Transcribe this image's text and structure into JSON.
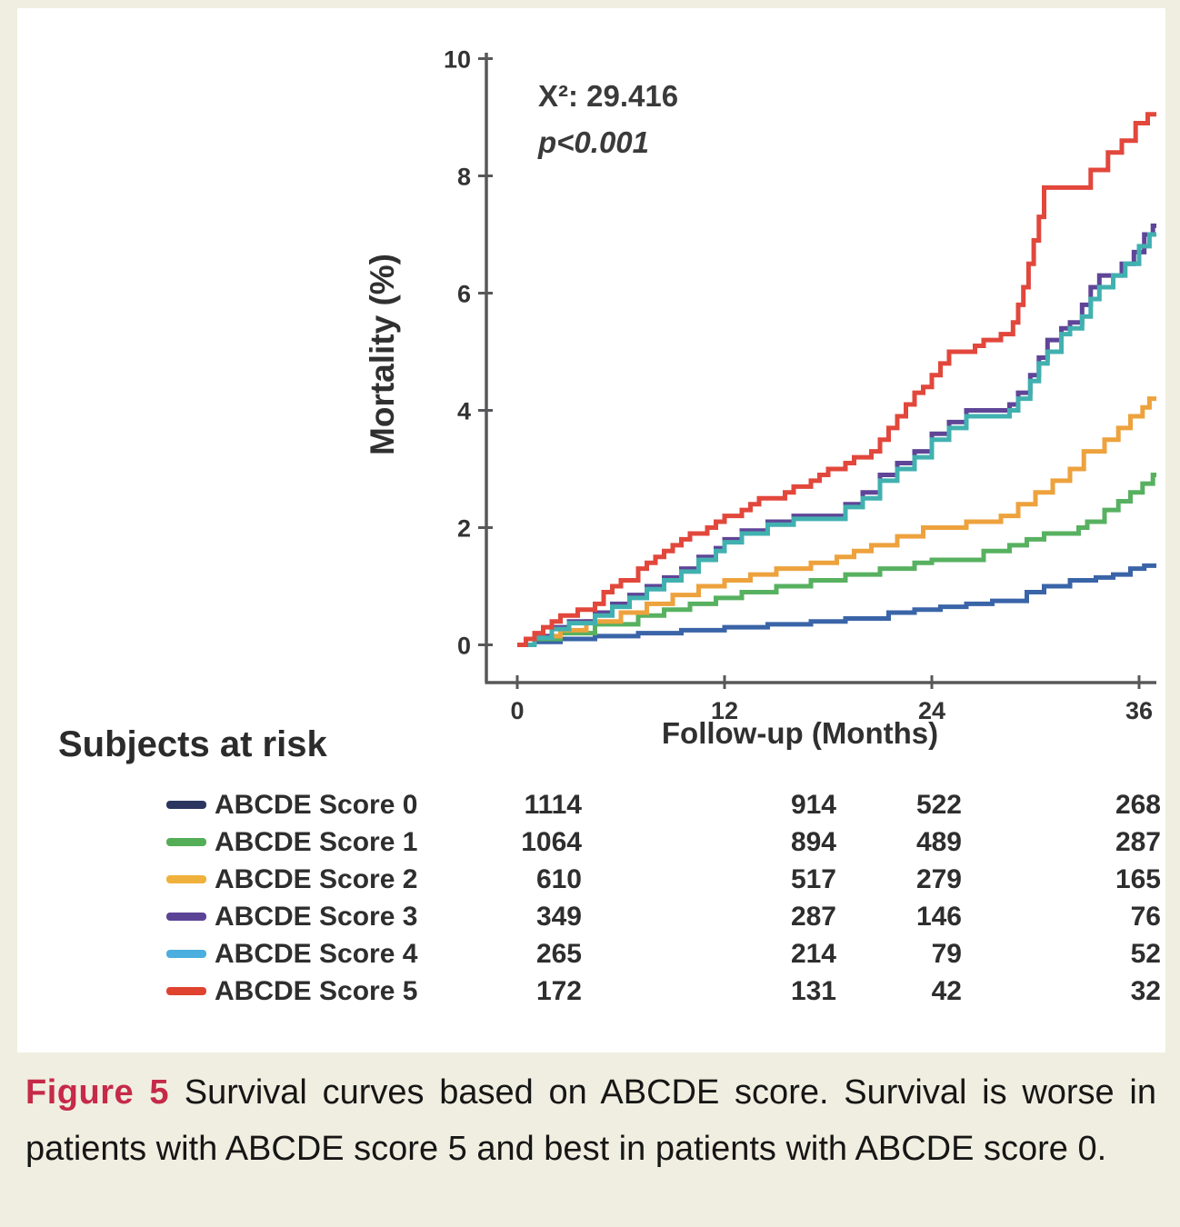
{
  "figure": {
    "caption_label": "Figure 5",
    "caption_text": "Survival curves based on ABCDE score. Survival is worse in patients with ABCDE score 5 and best in patients with ABCDE score 0.",
    "caption_label_color": "#c62a49",
    "background_color": "#f0eee0",
    "panel_color": "#ffffff"
  },
  "chart_data": {
    "type": "line",
    "subtype": "step-mortality-curves",
    "title": "",
    "xlabel": "Follow-up (Months)",
    "ylabel": "Mortality (%)",
    "xlim": [
      0,
      37
    ],
    "ylim": [
      0,
      10
    ],
    "x_ticks": [
      0,
      12,
      24,
      36
    ],
    "y_ticks": [
      0,
      2,
      4,
      6,
      8,
      10
    ],
    "grid": false,
    "legend_position": "bottom-risk-table",
    "annotation": {
      "chi_square": "X²: 29.416",
      "p_value": "p<0.001"
    },
    "axis_color": "#58585a",
    "series": [
      {
        "name": "ABCDE Score 0",
        "line_color": "#3a64a8",
        "swatch_color": "#2a3560",
        "points": [
          [
            0,
            0
          ],
          [
            1,
            0.05
          ],
          [
            2.5,
            0.1
          ],
          [
            4.5,
            0.15
          ],
          [
            7,
            0.2
          ],
          [
            9.5,
            0.25
          ],
          [
            12,
            0.3
          ],
          [
            14.5,
            0.35
          ],
          [
            17,
            0.4
          ],
          [
            19,
            0.45
          ],
          [
            21.5,
            0.55
          ],
          [
            23,
            0.6
          ],
          [
            24.5,
            0.65
          ],
          [
            26,
            0.7
          ],
          [
            27.5,
            0.75
          ],
          [
            29.5,
            0.9
          ],
          [
            30.5,
            1.0
          ],
          [
            32,
            1.1
          ],
          [
            33.5,
            1.15
          ],
          [
            34.5,
            1.2
          ],
          [
            35.5,
            1.3
          ],
          [
            36.3,
            1.35
          ],
          [
            37,
            1.35
          ]
        ]
      },
      {
        "name": "ABCDE Score 1",
        "line_color": "#57b160",
        "swatch_color": "#53ae57",
        "points": [
          [
            0,
            0
          ],
          [
            1,
            0.1
          ],
          [
            2.5,
            0.2
          ],
          [
            4.5,
            0.35
          ],
          [
            7,
            0.5
          ],
          [
            8.5,
            0.6
          ],
          [
            10,
            0.7
          ],
          [
            11.5,
            0.8
          ],
          [
            13,
            0.9
          ],
          [
            15,
            1.0
          ],
          [
            17,
            1.1
          ],
          [
            19,
            1.2
          ],
          [
            21,
            1.3
          ],
          [
            23,
            1.4
          ],
          [
            24,
            1.45
          ],
          [
            27,
            1.6
          ],
          [
            28.5,
            1.7
          ],
          [
            29.5,
            1.8
          ],
          [
            30.5,
            1.9
          ],
          [
            32.5,
            2.0
          ],
          [
            33,
            2.1
          ],
          [
            34,
            2.3
          ],
          [
            34.8,
            2.45
          ],
          [
            35.5,
            2.6
          ],
          [
            36.2,
            2.75
          ],
          [
            36.8,
            2.9
          ],
          [
            37,
            2.9
          ]
        ]
      },
      {
        "name": "ABCDE Score 2",
        "line_color": "#eda23d",
        "swatch_color": "#f0b13c",
        "points": [
          [
            0,
            0
          ],
          [
            1,
            0.15
          ],
          [
            2.5,
            0.25
          ],
          [
            4,
            0.4
          ],
          [
            6,
            0.55
          ],
          [
            7.5,
            0.7
          ],
          [
            9,
            0.85
          ],
          [
            10.5,
            1.0
          ],
          [
            12,
            1.1
          ],
          [
            13.5,
            1.2
          ],
          [
            15,
            1.3
          ],
          [
            17,
            1.4
          ],
          [
            18.5,
            1.5
          ],
          [
            19.5,
            1.6
          ],
          [
            20.5,
            1.7
          ],
          [
            22,
            1.85
          ],
          [
            23.5,
            2.0
          ],
          [
            26,
            2.1
          ],
          [
            28,
            2.2
          ],
          [
            29,
            2.4
          ],
          [
            30,
            2.6
          ],
          [
            31,
            2.8
          ],
          [
            32,
            3.0
          ],
          [
            32.8,
            3.3
          ],
          [
            34,
            3.5
          ],
          [
            34.8,
            3.7
          ],
          [
            35.5,
            3.9
          ],
          [
            36.2,
            4.05
          ],
          [
            36.6,
            4.2
          ],
          [
            37,
            4.2
          ]
        ]
      },
      {
        "name": "ABCDE Score 3",
        "line_color": "#5f4597",
        "swatch_color": "#5b4396",
        "points": [
          [
            0,
            0
          ],
          [
            1,
            0.15
          ],
          [
            2,
            0.3
          ],
          [
            3,
            0.4
          ],
          [
            4.5,
            0.55
          ],
          [
            5.5,
            0.7
          ],
          [
            6.5,
            0.85
          ],
          [
            7.5,
            1.0
          ],
          [
            8.5,
            1.15
          ],
          [
            9.5,
            1.3
          ],
          [
            10.5,
            1.5
          ],
          [
            11.5,
            1.65
          ],
          [
            12,
            1.8
          ],
          [
            13,
            1.95
          ],
          [
            14.5,
            2.1
          ],
          [
            16,
            2.2
          ],
          [
            19,
            2.4
          ],
          [
            20,
            2.6
          ],
          [
            21,
            2.9
          ],
          [
            22,
            3.1
          ],
          [
            23,
            3.3
          ],
          [
            24,
            3.6
          ],
          [
            25,
            3.8
          ],
          [
            26,
            4.0
          ],
          [
            28.5,
            4.1
          ],
          [
            29,
            4.3
          ],
          [
            29.7,
            4.6
          ],
          [
            30.2,
            4.9
          ],
          [
            30.7,
            5.2
          ],
          [
            31.5,
            5.4
          ],
          [
            32,
            5.5
          ],
          [
            32.7,
            5.8
          ],
          [
            33.2,
            6.1
          ],
          [
            33.7,
            6.3
          ],
          [
            35,
            6.5
          ],
          [
            35.7,
            6.7
          ],
          [
            36.3,
            7.0
          ],
          [
            36.8,
            7.15
          ],
          [
            37,
            7.15
          ]
        ]
      },
      {
        "name": "ABCDE Score 4",
        "line_color": "#41b1b0",
        "swatch_color": "#4aaede",
        "points": [
          [
            0,
            0
          ],
          [
            1,
            0.12
          ],
          [
            2,
            0.27
          ],
          [
            3,
            0.37
          ],
          [
            4.5,
            0.5
          ],
          [
            5.5,
            0.65
          ],
          [
            6.5,
            0.8
          ],
          [
            7.5,
            0.95
          ],
          [
            8.5,
            1.1
          ],
          [
            9.5,
            1.25
          ],
          [
            10.5,
            1.45
          ],
          [
            11.5,
            1.6
          ],
          [
            12,
            1.75
          ],
          [
            13,
            1.9
          ],
          [
            14.5,
            2.05
          ],
          [
            16,
            2.15
          ],
          [
            19,
            2.35
          ],
          [
            20,
            2.5
          ],
          [
            21,
            2.8
          ],
          [
            22,
            3.0
          ],
          [
            23,
            3.2
          ],
          [
            24,
            3.5
          ],
          [
            25,
            3.7
          ],
          [
            26,
            3.9
          ],
          [
            28.5,
            4.0
          ],
          [
            29,
            4.2
          ],
          [
            29.7,
            4.5
          ],
          [
            30.2,
            4.8
          ],
          [
            30.7,
            5.0
          ],
          [
            31.5,
            5.3
          ],
          [
            32,
            5.4
          ],
          [
            32.7,
            5.6
          ],
          [
            33.2,
            5.9
          ],
          [
            33.7,
            6.1
          ],
          [
            34.5,
            6.3
          ],
          [
            35.2,
            6.5
          ],
          [
            36,
            6.8
          ],
          [
            36.6,
            7.0
          ],
          [
            37,
            7.0
          ]
        ]
      },
      {
        "name": "ABCDE Score 5",
        "line_color": "#e2473c",
        "swatch_color": "#df4330",
        "points": [
          [
            0,
            0
          ],
          [
            0.5,
            0.1
          ],
          [
            1,
            0.2
          ],
          [
            1.5,
            0.3
          ],
          [
            2,
            0.4
          ],
          [
            2.5,
            0.5
          ],
          [
            3.5,
            0.6
          ],
          [
            4.5,
            0.7
          ],
          [
            5,
            0.9
          ],
          [
            5.5,
            1.0
          ],
          [
            6,
            1.1
          ],
          [
            7,
            1.3
          ],
          [
            7.5,
            1.4
          ],
          [
            8,
            1.5
          ],
          [
            8.5,
            1.6
          ],
          [
            9,
            1.7
          ],
          [
            9.5,
            1.8
          ],
          [
            10,
            1.9
          ],
          [
            11,
            2.0
          ],
          [
            11.5,
            2.1
          ],
          [
            12,
            2.2
          ],
          [
            13,
            2.3
          ],
          [
            13.5,
            2.4
          ],
          [
            14,
            2.5
          ],
          [
            15.5,
            2.6
          ],
          [
            16,
            2.7
          ],
          [
            17,
            2.8
          ],
          [
            17.5,
            2.9
          ],
          [
            18,
            3.0
          ],
          [
            19,
            3.1
          ],
          [
            19.5,
            3.2
          ],
          [
            20.5,
            3.3
          ],
          [
            21,
            3.5
          ],
          [
            21.5,
            3.7
          ],
          [
            22,
            3.9
          ],
          [
            22.5,
            4.1
          ],
          [
            23,
            4.3
          ],
          [
            23.5,
            4.4
          ],
          [
            24,
            4.6
          ],
          [
            24.5,
            4.8
          ],
          [
            25,
            5.0
          ],
          [
            26.5,
            5.1
          ],
          [
            27,
            5.2
          ],
          [
            28,
            5.3
          ],
          [
            28.7,
            5.5
          ],
          [
            29,
            5.8
          ],
          [
            29.3,
            6.1
          ],
          [
            29.6,
            6.5
          ],
          [
            29.9,
            6.9
          ],
          [
            30.2,
            7.3
          ],
          [
            30.5,
            7.8
          ],
          [
            33.2,
            8.1
          ],
          [
            34.2,
            8.4
          ],
          [
            35,
            8.6
          ],
          [
            35.8,
            8.9
          ],
          [
            36.5,
            9.05
          ],
          [
            37,
            9.05
          ]
        ]
      }
    ]
  },
  "risk_table": {
    "header": "Subjects at risk",
    "time_points": [
      0,
      12,
      24,
      36
    ],
    "rows": [
      {
        "label": "ABCDE Score 0",
        "counts": [
          "1114",
          "914",
          "522",
          "268"
        ]
      },
      {
        "label": "ABCDE Score 1",
        "counts": [
          "1064",
          "894",
          "489",
          "287"
        ]
      },
      {
        "label": "ABCDE Score 2",
        "counts": [
          "610",
          "517",
          "279",
          "165"
        ]
      },
      {
        "label": "ABCDE Score 3",
        "counts": [
          "349",
          "287",
          "146",
          "76"
        ]
      },
      {
        "label": "ABCDE Score 4",
        "counts": [
          "265",
          "214",
          "79",
          "52"
        ]
      },
      {
        "label": "ABCDE Score 5",
        "counts": [
          "172",
          "131",
          "42",
          "32"
        ]
      }
    ]
  }
}
